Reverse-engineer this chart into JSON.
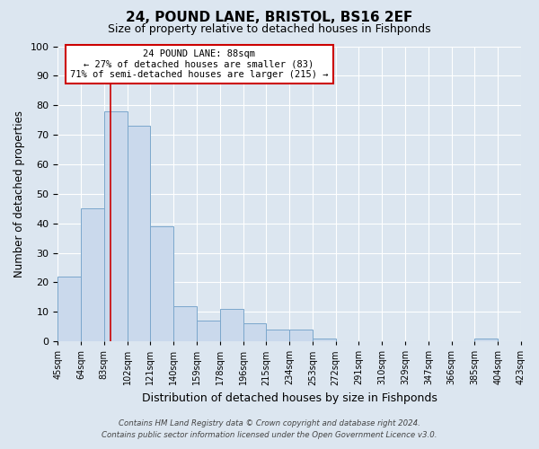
{
  "title": "24, POUND LANE, BRISTOL, BS16 2EF",
  "subtitle": "Size of property relative to detached houses in Fishponds",
  "xlabel": "Distribution of detached houses by size in Fishponds",
  "ylabel": "Number of detached properties",
  "bar_values": [
    22,
    45,
    78,
    73,
    39,
    12,
    7,
    11,
    6,
    4,
    4,
    1,
    0,
    0,
    0,
    0,
    0,
    0,
    1,
    0
  ],
  "bin_labels": [
    "45sqm",
    "64sqm",
    "83sqm",
    "102sqm",
    "121sqm",
    "140sqm",
    "159sqm",
    "178sqm",
    "196sqm",
    "215sqm",
    "234sqm",
    "253sqm",
    "272sqm",
    "291sqm",
    "310sqm",
    "329sqm",
    "347sqm",
    "366sqm",
    "385sqm",
    "404sqm",
    "423sqm"
  ],
  "bar_color": "#cad9ec",
  "bar_edge_color": "#7ba7cc",
  "ylim": [
    0,
    100
  ],
  "yticks": [
    0,
    10,
    20,
    30,
    40,
    50,
    60,
    70,
    80,
    90,
    100
  ],
  "vline_x": 88,
  "vline_color": "#cc0000",
  "annotation_title": "24 POUND LANE: 88sqm",
  "annotation_line1": "← 27% of detached houses are smaller (83)",
  "annotation_line2": "71% of semi-detached houses are larger (215) →",
  "annotation_box_facecolor": "#ffffff",
  "annotation_box_edgecolor": "#cc0000",
  "footer1": "Contains HM Land Registry data © Crown copyright and database right 2024.",
  "footer2": "Contains public sector information licensed under the Open Government Licence v3.0.",
  "fig_facecolor": "#dce6f0",
  "plot_facecolor": "#dce6f0",
  "grid_color": "#ffffff"
}
